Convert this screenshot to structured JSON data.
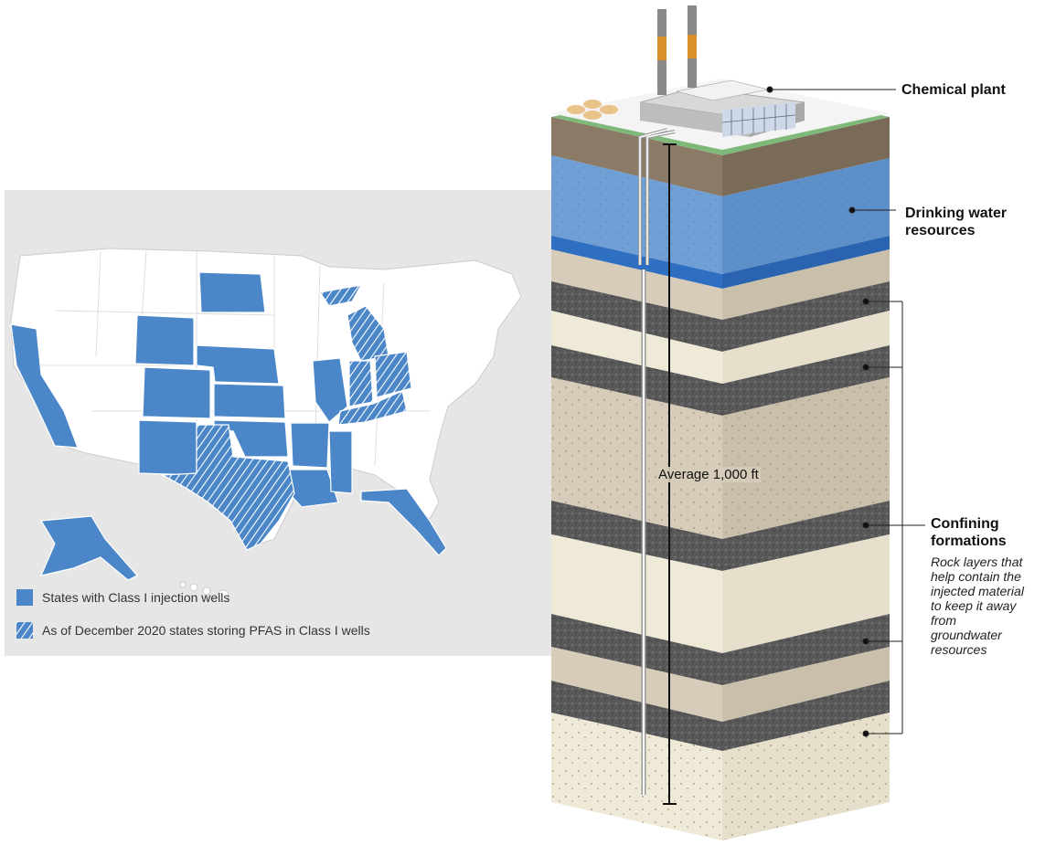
{
  "legend": {
    "class1": {
      "label": "States with Class I injection wells",
      "color": "#4a86c8"
    },
    "pfas": {
      "label": "As of December 2020 states storing PFAS in Class I wells"
    }
  },
  "diagram": {
    "chemical_plant": "Chemical plant",
    "drinking_water_line1": "Drinking water",
    "drinking_water_line2": "resources",
    "confining_line1": "Confining",
    "confining_line2": "formations",
    "confining_desc": [
      "Rock layers that",
      "help contain the",
      "injected material",
      "to keep it away",
      "from",
      "groundwater",
      "resources"
    ],
    "depth_label": "Average 1,000 ft"
  },
  "colors": {
    "state_fill": "#4a86c8",
    "unshaded_state": "#ffffff",
    "panel": "#e6e6e6",
    "water": "#6f9fd4",
    "sand": "#d6ccb9",
    "dark_rock": "#545454",
    "light_rock": "#efe9d8"
  }
}
